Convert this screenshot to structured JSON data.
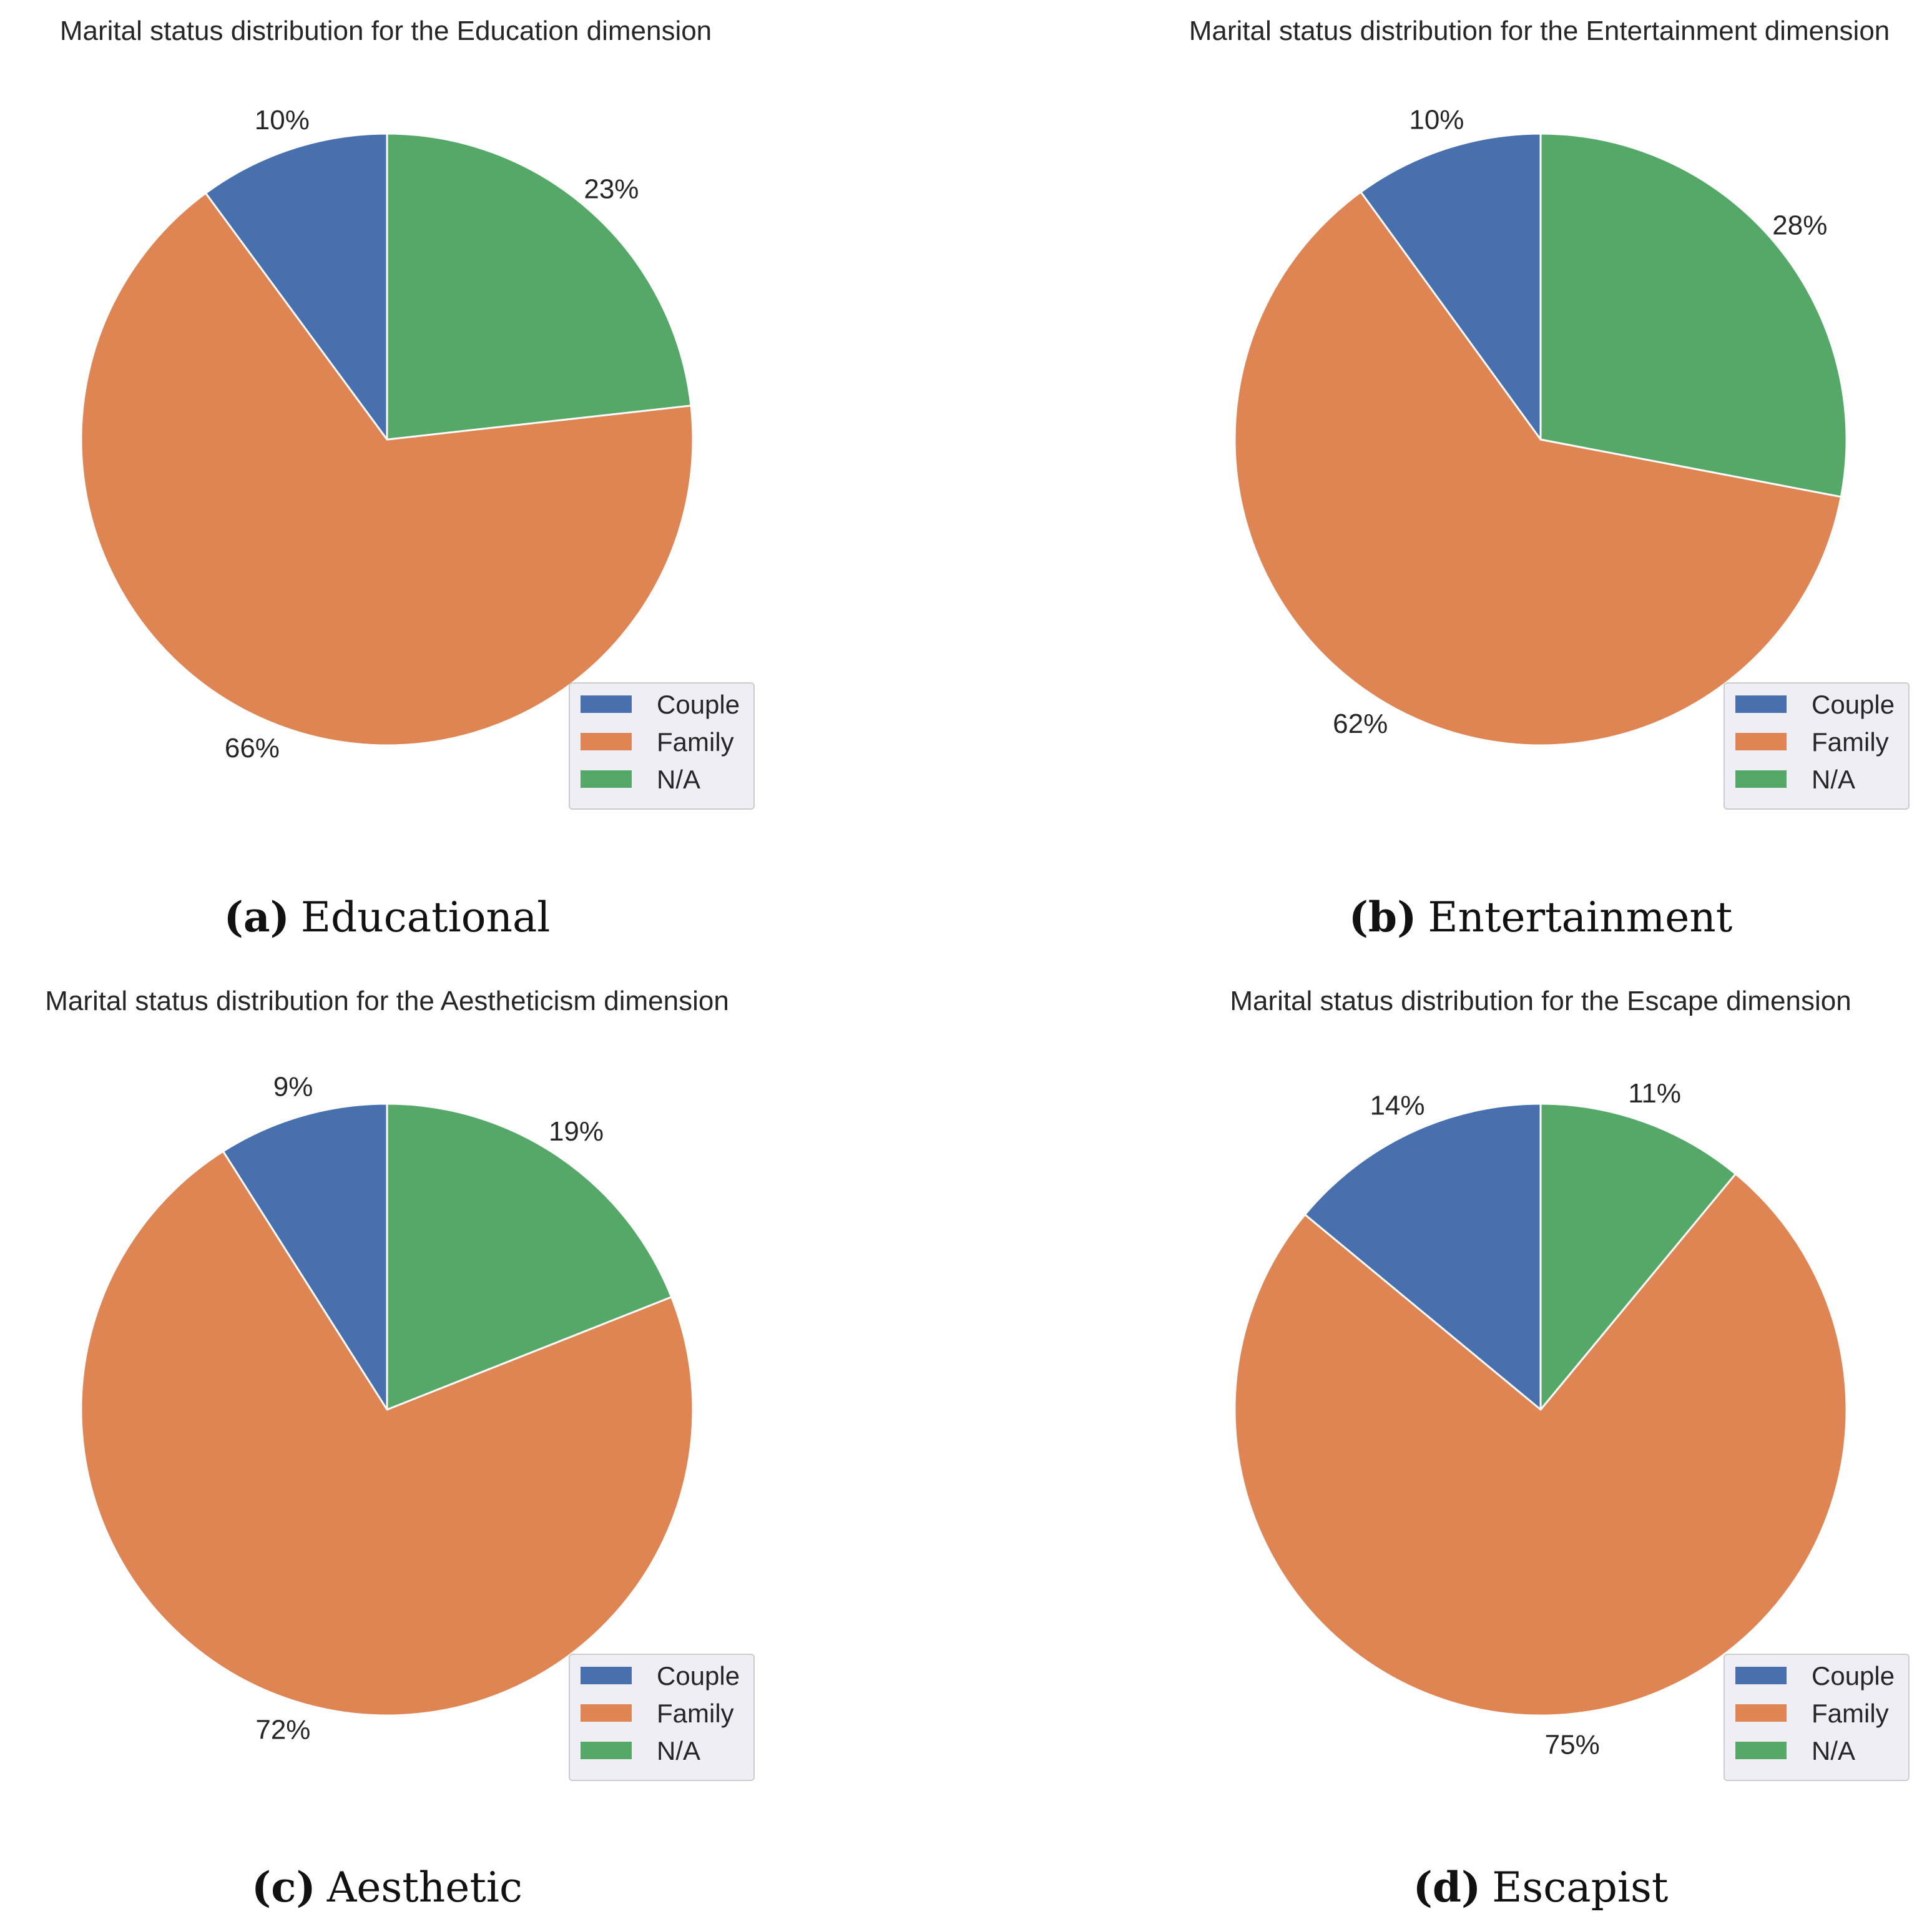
{
  "colors": {
    "Couple": "#4870AE",
    "Family": "#DF8453",
    "N/A": "#55A868",
    "legend_bg": "#EEEEF4",
    "legend_border": "#CCCCCC"
  },
  "chart_data": [
    {
      "type": "pie",
      "title": "Marital status distribution for the Education dimension",
      "caption_tag": "(a)",
      "caption_text": "Educational",
      "labels": [
        "Couple",
        "Family",
        "N/A"
      ],
      "values": [
        10,
        66,
        23
      ],
      "value_labels": [
        "10%",
        "66%",
        "23%"
      ],
      "start_angle_deg": 90,
      "direction": "counterclockwise",
      "legend_position": "lower right"
    },
    {
      "type": "pie",
      "title": "Marital status distribution for the Entertainment dimension",
      "caption_tag": "(b)",
      "caption_text": "Entertainment",
      "labels": [
        "Couple",
        "Family",
        "N/A"
      ],
      "values": [
        10,
        62,
        28
      ],
      "value_labels": [
        "10%",
        "62%",
        "28%"
      ],
      "start_angle_deg": 90,
      "direction": "counterclockwise",
      "legend_position": "lower right"
    },
    {
      "type": "pie",
      "title": "Marital status distribution for the Aestheticism dimension",
      "caption_tag": "(c)",
      "caption_text": "Aesthetic",
      "labels": [
        "Couple",
        "Family",
        "N/A"
      ],
      "values": [
        9,
        72,
        19
      ],
      "value_labels": [
        "9%",
        "72%",
        "19%"
      ],
      "start_angle_deg": 90,
      "direction": "counterclockwise",
      "legend_position": "lower right"
    },
    {
      "type": "pie",
      "title": "Marital status distribution for the Escape dimension",
      "caption_tag": "(d)",
      "caption_text": "Escapist",
      "labels": [
        "Couple",
        "Family",
        "N/A"
      ],
      "values": [
        14,
        75,
        11
      ],
      "value_labels": [
        "14%",
        "75%",
        "11%"
      ],
      "start_angle_deg": 90,
      "direction": "counterclockwise",
      "legend_position": "lower right"
    }
  ]
}
